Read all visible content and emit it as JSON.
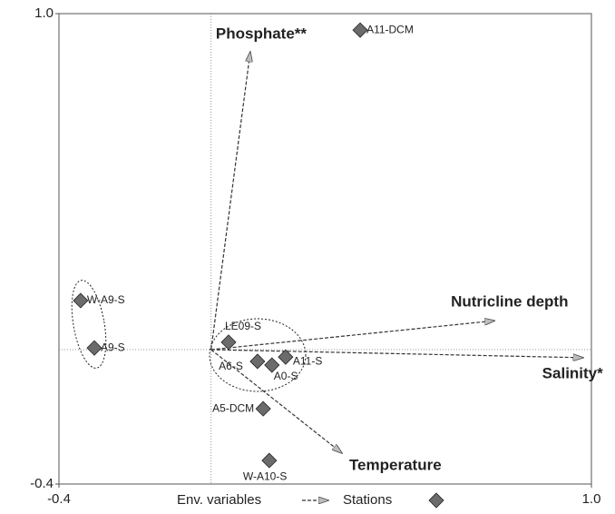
{
  "chart_data": {
    "type": "scatter",
    "xlim": [
      -0.4,
      1
    ],
    "ylim": [
      -0.4,
      1
    ],
    "xticks": [
      -0.4,
      {
        "value": 1,
        "label": "1.0"
      }
    ],
    "yticks": [
      -0.4,
      {
        "value": 1,
        "label": "1.0"
      }
    ],
    "series": [
      {
        "name": "Stations",
        "color": "#6b6b6b",
        "labels": [
          "A11-DCM",
          "W-A9-S",
          "A9-S",
          "LE09-S",
          "A6-S",
          "A0-S",
          "A11-S",
          "A5-DCM",
          "W-A10-S"
        ],
        "x": [
          0.392,
          -0.343,
          -0.307,
          0.046,
          0.122,
          0.16,
          0.196,
          0.137,
          0.153
        ],
        "y": [
          0.951,
          0.146,
          0.005,
          0.022,
          -0.035,
          -0.046,
          -0.022,
          -0.176,
          -0.33
        ]
      }
    ],
    "vectors": {
      "name": "Env. variables",
      "color": "#9a9a9a",
      "labels": [
        "Phosphate**",
        "Nutricline depth",
        "Salinity*",
        "Temperature"
      ],
      "x": [
        0.103,
        0.745,
        0.978,
        0.344
      ],
      "y": [
        0.886,
        0.086,
        -0.024,
        -0.308
      ]
    }
  }
}
